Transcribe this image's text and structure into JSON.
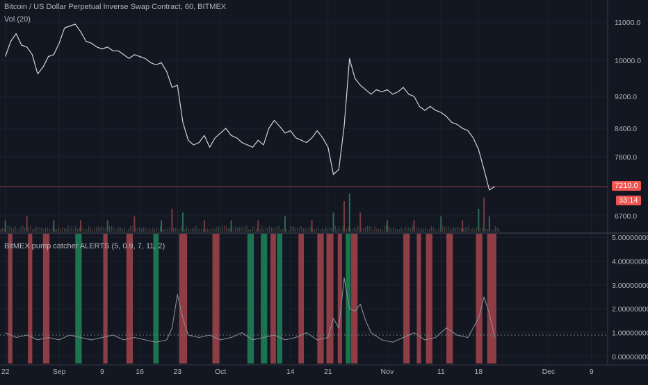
{
  "header": {
    "symbol_title": "Bitcoin / US Dollar Perpetual Inverse Swap Contract, 60, BITMEX",
    "volume_label": "Vol (20)",
    "indicator_label": "BitMEX pump catcher ALERTS (5, 0.9, 7, 11, 2)"
  },
  "price_axis": {
    "ticks": [
      {
        "value": 11000,
        "label": "11000.0"
      },
      {
        "value": 10000,
        "label": "10000.0"
      },
      {
        "value": 9200,
        "label": "9200.0"
      },
      {
        "value": 8400,
        "label": "8400.0"
      },
      {
        "value": 7800,
        "label": "7800.0"
      },
      {
        "value": 6700,
        "label": "6700.0"
      }
    ],
    "last_price": {
      "value": 7210,
      "label": "7210.0"
    },
    "countdown": "33:14"
  },
  "indicator_axis": {
    "ticks": [
      {
        "value": 5,
        "label": "5.00000000"
      },
      {
        "value": 4,
        "label": "4.00000000"
      },
      {
        "value": 3,
        "label": "3.00000000"
      },
      {
        "value": 2,
        "label": "2.00000000"
      },
      {
        "value": 1,
        "label": "1.00000000"
      },
      {
        "value": 0,
        "label": "0.00000000"
      }
    ]
  },
  "time_axis": {
    "ticks": [
      {
        "day": 0,
        "label": "22"
      },
      {
        "day": 10,
        "label": "Sep"
      },
      {
        "day": 18,
        "label": "9"
      },
      {
        "day": 25,
        "label": "16"
      },
      {
        "day": 32,
        "label": "23"
      },
      {
        "day": 40,
        "label": "Oct"
      },
      {
        "day": 53,
        "label": "14"
      },
      {
        "day": 60,
        "label": "21"
      },
      {
        "day": 71,
        "label": "Nov"
      },
      {
        "day": 81,
        "label": "11"
      },
      {
        "day": 88,
        "label": "18"
      },
      {
        "day": 101,
        "label": "Dec"
      },
      {
        "day": 109,
        "label": "9"
      }
    ]
  },
  "colors": {
    "background": "#131722",
    "grid": "#1e222d",
    "price_line": "#d1d4dc",
    "alert_red": "#b2484f",
    "alert_green": "#1f8d5c",
    "last_price_tag": "#f05350",
    "indicator_line": "#8a8d96"
  },
  "chart_data": [
    {
      "type": "line",
      "title": "Bitcoin / US Dollar Perpetual Inverse Swap Contract, 60, BITMEX",
      "x_unit": "days",
      "x": [
        0,
        1,
        2,
        3,
        4,
        5,
        6,
        7,
        8,
        9,
        10,
        11,
        12,
        13,
        14,
        15,
        16,
        17,
        18,
        19,
        20,
        21,
        22,
        23,
        24,
        25,
        26,
        27,
        28,
        29,
        30,
        31,
        32,
        33,
        34,
        35,
        36,
        37,
        38,
        39,
        40,
        41,
        42,
        43,
        44,
        45,
        46,
        47,
        48,
        49,
        50,
        51,
        52,
        53,
        54,
        55,
        56,
        57,
        58,
        59,
        60,
        61,
        62,
        63,
        64,
        65,
        66,
        67,
        68,
        69,
        70,
        71,
        72,
        73,
        74,
        75,
        76,
        77,
        78,
        79,
        80,
        81,
        82,
        83,
        84,
        85,
        86,
        87,
        88,
        89,
        90,
        91
      ],
      "values": [
        10100,
        10500,
        10700,
        10400,
        10350,
        10150,
        9700,
        9850,
        10100,
        10150,
        10450,
        10850,
        10900,
        10950,
        10750,
        10500,
        10450,
        10350,
        10300,
        10350,
        10250,
        10250,
        10150,
        10050,
        10150,
        10100,
        10050,
        9950,
        9900,
        9950,
        9750,
        9400,
        9450,
        8550,
        8150,
        8050,
        8100,
        8250,
        8000,
        8200,
        8300,
        8400,
        8250,
        8200,
        8100,
        8050,
        8000,
        8150,
        8050,
        8400,
        8600,
        8450,
        8300,
        8350,
        8200,
        8150,
        8100,
        8200,
        8350,
        8200,
        8000,
        7450,
        7550,
        8450,
        10050,
        9600,
        9450,
        9350,
        9250,
        9350,
        9300,
        9350,
        9250,
        9300,
        9400,
        9250,
        9200,
        8950,
        8850,
        8950,
        8850,
        8800,
        8700,
        8550,
        8500,
        8400,
        8350,
        8200,
        7950,
        7550,
        7150,
        7210
      ],
      "ylim": [
        6550,
        11300
      ],
      "ylabel": ""
    },
    {
      "type": "bar",
      "title": "Vol (20)",
      "note_visible": "volume bars along bottom of main pane",
      "x_unit": "days",
      "x": [
        0,
        4,
        9,
        14,
        19,
        24,
        29,
        31,
        33,
        37,
        42,
        47,
        52,
        57,
        61,
        63,
        64,
        66,
        71,
        76,
        81,
        85,
        88,
        89,
        90
      ],
      "values": [
        0.3,
        0.4,
        0.3,
        0.3,
        0.3,
        0.4,
        0.3,
        0.6,
        0.5,
        0.3,
        0.3,
        0.3,
        0.4,
        0.3,
        0.5,
        0.8,
        1.0,
        0.5,
        0.3,
        0.3,
        0.4,
        0.3,
        0.6,
        0.9,
        0.4
      ]
    },
    {
      "type": "line",
      "title": "BitMEX pump catcher ALERTS (5, 0.9, 7, 11, 2)",
      "x_unit": "days",
      "x": [
        0,
        2,
        4,
        6,
        8,
        10,
        12,
        14,
        16,
        18,
        20,
        22,
        24,
        26,
        28,
        30,
        31,
        32,
        33,
        34,
        36,
        38,
        40,
        42,
        44,
        46,
        48,
        50,
        52,
        54,
        56,
        58,
        60,
        61,
        62,
        63,
        64,
        65,
        66,
        67,
        68,
        70,
        72,
        74,
        76,
        78,
        80,
        82,
        84,
        86,
        88,
        89,
        90,
        91
      ],
      "values": [
        1.0,
        0.8,
        0.9,
        0.7,
        0.8,
        0.7,
        0.9,
        0.8,
        0.7,
        0.8,
        0.9,
        0.7,
        0.8,
        0.7,
        0.6,
        0.7,
        1.2,
        2.6,
        1.6,
        0.9,
        0.8,
        0.9,
        0.7,
        0.8,
        1.0,
        0.7,
        0.8,
        0.9,
        0.7,
        0.8,
        1.0,
        0.7,
        0.8,
        1.6,
        1.2,
        3.3,
        2.0,
        1.9,
        2.2,
        1.5,
        1.0,
        0.7,
        0.6,
        0.8,
        1.0,
        0.7,
        0.8,
        1.2,
        0.9,
        0.8,
        1.6,
        2.5,
        1.8,
        0.8
      ],
      "reference_line": 0.9,
      "ylim": [
        -0.1,
        5.1
      ]
    },
    {
      "type": "bar",
      "title": "alert bands",
      "x_unit": "days",
      "bands": [
        {
          "start": 0.5,
          "end": 1.3,
          "color": "red"
        },
        {
          "start": 4.2,
          "end": 5.0,
          "color": "red"
        },
        {
          "start": 7.0,
          "end": 8.2,
          "color": "red"
        },
        {
          "start": 13.0,
          "end": 14.2,
          "color": "green"
        },
        {
          "start": 18.2,
          "end": 19.0,
          "color": "red"
        },
        {
          "start": 22.5,
          "end": 23.7,
          "color": "red"
        },
        {
          "start": 27.5,
          "end": 28.5,
          "color": "green"
        },
        {
          "start": 32.3,
          "end": 33.8,
          "color": "red"
        },
        {
          "start": 38.5,
          "end": 39.8,
          "color": "red"
        },
        {
          "start": 45.0,
          "end": 46.2,
          "color": "green"
        },
        {
          "start": 47.5,
          "end": 48.7,
          "color": "green"
        },
        {
          "start": 49.3,
          "end": 50.3,
          "color": "red"
        },
        {
          "start": 50.5,
          "end": 51.5,
          "color": "green"
        },
        {
          "start": 54.5,
          "end": 55.5,
          "color": "red"
        },
        {
          "start": 58.0,
          "end": 59.2,
          "color": "red"
        },
        {
          "start": 59.7,
          "end": 61.0,
          "color": "red"
        },
        {
          "start": 61.8,
          "end": 62.6,
          "color": "red"
        },
        {
          "start": 63.3,
          "end": 64.2,
          "color": "green"
        },
        {
          "start": 64.3,
          "end": 65.5,
          "color": "red"
        },
        {
          "start": 74.0,
          "end": 75.2,
          "color": "red"
        },
        {
          "start": 76.5,
          "end": 77.3,
          "color": "red"
        },
        {
          "start": 78.2,
          "end": 79.4,
          "color": "red"
        },
        {
          "start": 82.0,
          "end": 83.2,
          "color": "red"
        },
        {
          "start": 87.5,
          "end": 88.7,
          "color": "red"
        },
        {
          "start": 89.6,
          "end": 91.3,
          "color": "red"
        }
      ]
    }
  ]
}
